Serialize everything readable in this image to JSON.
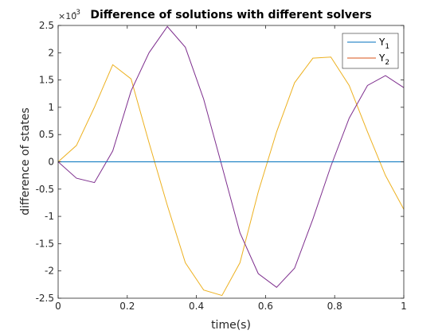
{
  "chart_data": {
    "type": "line",
    "title": "Difference of solutions with different solvers",
    "xlabel": "time(s)",
    "ylabel": "difference of states",
    "y_exponent_label": "×10",
    "y_exponent_value": "-3",
    "xlim": [
      0,
      1
    ],
    "ylim": [
      -2.5,
      2.5
    ],
    "x_ticks": [
      0,
      0.2,
      0.4,
      0.6,
      0.8,
      1
    ],
    "x_tick_labels": [
      "0",
      "0.2",
      "0.4",
      "0.6",
      "0.8",
      "1"
    ],
    "y_ticks": [
      -2.5,
      -2,
      -1.5,
      -1,
      -0.5,
      0,
      0.5,
      1,
      1.5,
      2,
      2.5
    ],
    "y_tick_labels": [
      "-2.5",
      "-2",
      "-1.5",
      "-1",
      "-0.5",
      "0",
      "0.5",
      "1",
      "1.5",
      "2",
      "2.5"
    ],
    "grid": false,
    "legend_position": "top-right",
    "series": [
      {
        "name": "Y",
        "subscript": "1",
        "color": "#0072BD",
        "x": [
          0,
          1
        ],
        "y": [
          0,
          0
        ]
      },
      {
        "name": "Y",
        "subscript": "2",
        "color": "#D95319",
        "x": [
          0,
          1
        ],
        "y": [
          0,
          0
        ]
      },
      {
        "color": "#EDB120",
        "x": [
          0,
          0.053,
          0.105,
          0.158,
          0.211,
          0.263,
          0.316,
          0.368,
          0.421,
          0.474,
          0.526,
          0.579,
          0.632,
          0.684,
          0.737,
          0.789,
          0.842,
          0.895,
          0.947,
          1.0
        ],
        "y": [
          0,
          0.3,
          1.0,
          1.78,
          1.52,
          0.35,
          -0.8,
          -1.85,
          -2.35,
          -2.45,
          -1.85,
          -0.55,
          0.55,
          1.45,
          1.9,
          1.92,
          1.4,
          0.55,
          -0.25,
          -0.87
        ]
      },
      {
        "color": "#7E2F8E",
        "x": [
          0,
          0.053,
          0.105,
          0.158,
          0.211,
          0.263,
          0.316,
          0.368,
          0.421,
          0.474,
          0.526,
          0.579,
          0.632,
          0.684,
          0.737,
          0.789,
          0.842,
          0.895,
          0.947,
          1.0
        ],
        "y": [
          0,
          -0.3,
          -0.38,
          0.2,
          1.3,
          2.0,
          2.48,
          2.1,
          1.15,
          -0.08,
          -1.3,
          -2.05,
          -2.3,
          -1.95,
          -1.05,
          -0.08,
          0.8,
          1.4,
          1.58,
          1.36
        ]
      }
    ]
  }
}
